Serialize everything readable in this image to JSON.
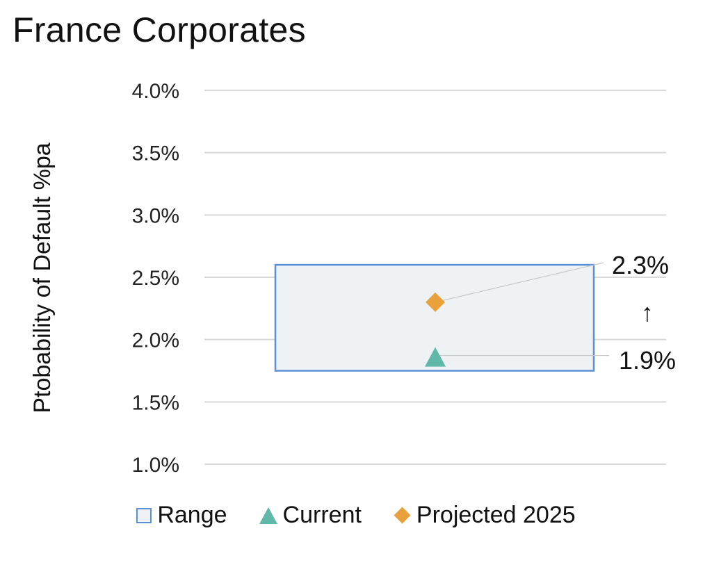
{
  "chart_data": {
    "type": "scatter",
    "title": "France Corporates",
    "ylabel": "Ptobability of Default %pa",
    "ylim": [
      1.0,
      4.0
    ],
    "y_ticks": [
      "4.0%",
      "3.5%",
      "3.0%",
      "2.5%",
      "2.0%",
      "1.5%",
      "1.0%"
    ],
    "y_tick_values": [
      4.0,
      3.5,
      3.0,
      2.5,
      2.0,
      1.5,
      1.0
    ],
    "range": {
      "low": 1.75,
      "high": 2.6
    },
    "current": 1.85,
    "projected_2025": 2.3,
    "labels": {
      "projected": "2.3%",
      "current": "1.9%",
      "arrow": "↑"
    },
    "legend": [
      "Range",
      "Current",
      "Projected 2025"
    ],
    "legend_placement": "bottom",
    "colors": {
      "range_fill": "#eef2f5",
      "range_border": "#5b8fd6",
      "current": "#5fb8a8",
      "projected": "#e9a13b",
      "grid": "#d9d9d9"
    }
  }
}
